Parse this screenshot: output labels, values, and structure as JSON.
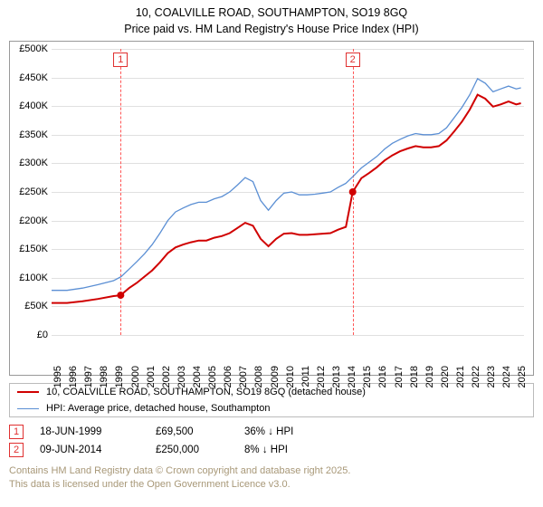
{
  "title_line1": "10, COALVILLE ROAD, SOUTHAMPTON, SO19 8GQ",
  "title_line2": "Price paid vs. HM Land Registry's House Price Index (HPI)",
  "chart": {
    "type": "line",
    "x_range": [
      1995,
      2025.5
    ],
    "y_range": [
      0,
      500000
    ],
    "y_ticks": [
      0,
      50000,
      100000,
      150000,
      200000,
      250000,
      300000,
      350000,
      400000,
      450000,
      500000
    ],
    "y_labels": [
      "£0",
      "£50K",
      "£100K",
      "£150K",
      "£200K",
      "£250K",
      "£300K",
      "£350K",
      "£400K",
      "£450K",
      "£500K"
    ],
    "x_ticks": [
      1995,
      1996,
      1997,
      1998,
      1999,
      2000,
      2001,
      2002,
      2003,
      2004,
      2005,
      2006,
      2007,
      2008,
      2009,
      2010,
      2011,
      2012,
      2013,
      2014,
      2015,
      2016,
      2017,
      2018,
      2019,
      2020,
      2021,
      2022,
      2023,
      2024,
      2025
    ],
    "x_labels": [
      "1995",
      "1996",
      "1997",
      "1998",
      "1999",
      "2000",
      "2001",
      "2002",
      "2003",
      "2004",
      "2005",
      "2006",
      "2007",
      "2008",
      "2009",
      "2010",
      "2011",
      "2012",
      "2013",
      "2014",
      "2015",
      "2016",
      "2017",
      "2018",
      "2019",
      "2020",
      "2021",
      "2022",
      "2023",
      "2024",
      "2025"
    ],
    "grid_color": "#e0e0e0",
    "background": "#ffffff",
    "border_color": "#999999",
    "series": [
      {
        "name": "hpi",
        "label": "HPI: Average price, detached house, Southampton",
        "color": "#5b8fd4",
        "line_width": 1.3,
        "points": [
          [
            1995,
            78000
          ],
          [
            1996,
            78000
          ],
          [
            1997,
            82000
          ],
          [
            1998,
            88000
          ],
          [
            1999,
            95000
          ],
          [
            1999.5,
            102000
          ],
          [
            2000,
            115000
          ],
          [
            2000.5,
            128000
          ],
          [
            2001,
            142000
          ],
          [
            2001.5,
            158000
          ],
          [
            2002,
            178000
          ],
          [
            2002.5,
            200000
          ],
          [
            2003,
            215000
          ],
          [
            2003.5,
            222000
          ],
          [
            2004,
            228000
          ],
          [
            2004.5,
            232000
          ],
          [
            2005,
            232000
          ],
          [
            2005.5,
            238000
          ],
          [
            2006,
            242000
          ],
          [
            2006.5,
            250000
          ],
          [
            2007,
            262000
          ],
          [
            2007.5,
            275000
          ],
          [
            2008,
            268000
          ],
          [
            2008.5,
            235000
          ],
          [
            2009,
            218000
          ],
          [
            2009.5,
            235000
          ],
          [
            2010,
            248000
          ],
          [
            2010.5,
            250000
          ],
          [
            2011,
            245000
          ],
          [
            2011.5,
            245000
          ],
          [
            2012,
            246000
          ],
          [
            2012.5,
            248000
          ],
          [
            2013,
            250000
          ],
          [
            2013.5,
            258000
          ],
          [
            2014,
            265000
          ],
          [
            2014.5,
            278000
          ],
          [
            2015,
            292000
          ],
          [
            2015.5,
            302000
          ],
          [
            2016,
            312000
          ],
          [
            2016.5,
            325000
          ],
          [
            2017,
            335000
          ],
          [
            2017.5,
            342000
          ],
          [
            2018,
            348000
          ],
          [
            2018.5,
            352000
          ],
          [
            2019,
            350000
          ],
          [
            2019.5,
            350000
          ],
          [
            2020,
            352000
          ],
          [
            2020.5,
            362000
          ],
          [
            2021,
            380000
          ],
          [
            2021.5,
            398000
          ],
          [
            2022,
            420000
          ],
          [
            2022.5,
            448000
          ],
          [
            2023,
            440000
          ],
          [
            2023.5,
            425000
          ],
          [
            2024,
            430000
          ],
          [
            2024.5,
            435000
          ],
          [
            2025,
            430000
          ],
          [
            2025.3,
            432000
          ]
        ]
      },
      {
        "name": "property",
        "label": "10, COALVILLE ROAD, SOUTHAMPTON, SO19 8GQ (detached house)",
        "color": "#d00000",
        "line_width": 2.0,
        "points": [
          [
            1995,
            56000
          ],
          [
            1996,
            56000
          ],
          [
            1997,
            59000
          ],
          [
            1998,
            63000
          ],
          [
            1999,
            68000
          ],
          [
            1999.46,
            69500
          ],
          [
            2000,
            82000
          ],
          [
            2000.5,
            91000
          ],
          [
            2001,
            102000
          ],
          [
            2001.5,
            113000
          ],
          [
            2002,
            127000
          ],
          [
            2002.5,
            143000
          ],
          [
            2003,
            153000
          ],
          [
            2003.5,
            158000
          ],
          [
            2004,
            162000
          ],
          [
            2004.5,
            165000
          ],
          [
            2005,
            165000
          ],
          [
            2005.5,
            170000
          ],
          [
            2006,
            173000
          ],
          [
            2006.5,
            178000
          ],
          [
            2007,
            187000
          ],
          [
            2007.5,
            196000
          ],
          [
            2008,
            191000
          ],
          [
            2008.5,
            168000
          ],
          [
            2009,
            155000
          ],
          [
            2009.5,
            168000
          ],
          [
            2010,
            177000
          ],
          [
            2010.5,
            178000
          ],
          [
            2011,
            175000
          ],
          [
            2011.5,
            175000
          ],
          [
            2012,
            176000
          ],
          [
            2012.5,
            177000
          ],
          [
            2013,
            178000
          ],
          [
            2013.5,
            184000
          ],
          [
            2014,
            189000
          ],
          [
            2014.44,
            250000
          ],
          [
            2015,
            274000
          ],
          [
            2015.5,
            283000
          ],
          [
            2016,
            293000
          ],
          [
            2016.5,
            305000
          ],
          [
            2017,
            314000
          ],
          [
            2017.5,
            321000
          ],
          [
            2018,
            326000
          ],
          [
            2018.5,
            330000
          ],
          [
            2019,
            328000
          ],
          [
            2019.5,
            328000
          ],
          [
            2020,
            330000
          ],
          [
            2020.5,
            340000
          ],
          [
            2021,
            356000
          ],
          [
            2021.5,
            373000
          ],
          [
            2022,
            394000
          ],
          [
            2022.5,
            420000
          ],
          [
            2023,
            413000
          ],
          [
            2023.5,
            399000
          ],
          [
            2024,
            403000
          ],
          [
            2024.5,
            408000
          ],
          [
            2025,
            403000
          ],
          [
            2025.3,
            405000
          ]
        ]
      }
    ],
    "sale_markers": [
      {
        "badge": "1",
        "x": 1999.46,
        "y": 69500,
        "badge_color": "#e03030"
      },
      {
        "badge": "2",
        "x": 2014.44,
        "y": 250000,
        "badge_color": "#e03030"
      }
    ]
  },
  "legend": {
    "border_color": "#bbbbbb"
  },
  "sales": [
    {
      "badge": "1",
      "date": "18-JUN-1999",
      "price": "£69,500",
      "hpi": "36% ↓ HPI"
    },
    {
      "badge": "2",
      "date": "09-JUN-2014",
      "price": "£250,000",
      "hpi": "8% ↓ HPI"
    }
  ],
  "footer_line1": "Contains HM Land Registry data © Crown copyright and database right 2025.",
  "footer_line2": "This data is licensed under the Open Government Licence v3.0."
}
